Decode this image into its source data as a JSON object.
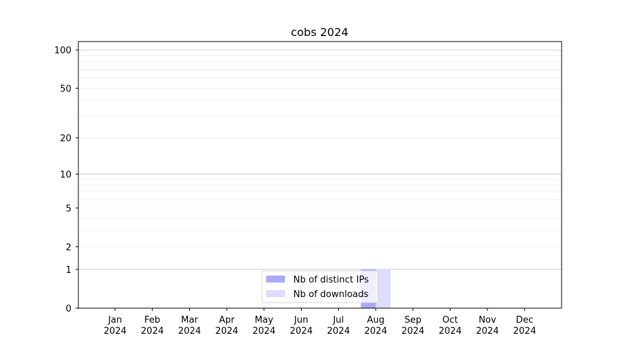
{
  "chart_data": {
    "type": "bar",
    "title": "cobs 2024",
    "xlabel": "",
    "ylabel": "",
    "yscale": "log(1+y)",
    "ylim": [
      0,
      116
    ],
    "yticks": [
      0,
      1,
      2,
      5,
      10,
      20,
      50,
      100
    ],
    "ytick_labels": [
      "0",
      "1",
      "2",
      "5",
      "10",
      "20",
      "50",
      "100"
    ],
    "grid": true,
    "categories": [
      "Jan\n2024",
      "Feb\n2024",
      "Mar\n2024",
      "Apr\n2024",
      "May\n2024",
      "Jun\n2024",
      "Jul\n2024",
      "Aug\n2024",
      "Sep\n2024",
      "Oct\n2024",
      "Nov\n2024",
      "Dec\n2024"
    ],
    "month_labels": [
      "Jan",
      "Feb",
      "Mar",
      "Apr",
      "May",
      "Jun",
      "Jul",
      "Aug",
      "Sep",
      "Oct",
      "Nov",
      "Dec"
    ],
    "year_label": "2024",
    "series": [
      {
        "name": "Nb of distinct IPs",
        "color": "#a9a9f7",
        "values": [
          0,
          0,
          0,
          0,
          0,
          0,
          0,
          1,
          0,
          0,
          0,
          0
        ]
      },
      {
        "name": "Nb of downloads",
        "color": "#dcdcfc",
        "values": [
          0,
          0,
          0,
          0,
          0,
          0,
          0,
          1,
          0,
          0,
          0,
          0
        ]
      }
    ],
    "legend_position": "lower center"
  }
}
